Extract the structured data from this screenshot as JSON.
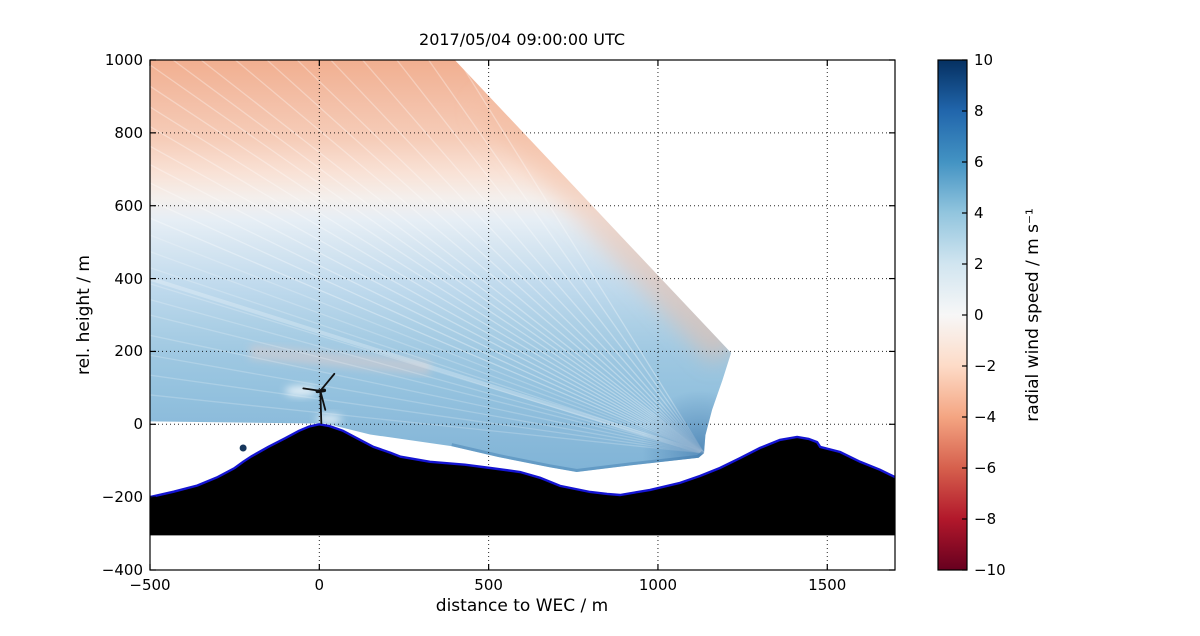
{
  "title": "2017/05/04 09:00:00 UTC",
  "axes": {
    "xlabel": "distance to WEC / m",
    "ylabel": "rel. height / m",
    "xlim": [
      -500,
      1700
    ],
    "ylim": [
      -400,
      1000
    ],
    "xticks": [
      {
        "v": -500,
        "label": "−500"
      },
      {
        "v": 0,
        "label": "0"
      },
      {
        "v": 500,
        "label": "500"
      },
      {
        "v": 1000,
        "label": "1000"
      },
      {
        "v": 1500,
        "label": "1500"
      }
    ],
    "yticks": [
      {
        "v": -400,
        "label": "−400"
      },
      {
        "v": -200,
        "label": "−200"
      },
      {
        "v": 0,
        "label": "0"
      },
      {
        "v": 200,
        "label": "200"
      },
      {
        "v": 400,
        "label": "400"
      },
      {
        "v": 600,
        "label": "600"
      },
      {
        "v": 800,
        "label": "800"
      },
      {
        "v": 1000,
        "label": "1000"
      }
    ],
    "grid": "dotted"
  },
  "colorbar": {
    "label": "radial wind speed / m s⁻¹",
    "vmin": -10,
    "vmax": 10,
    "cmap": "RdBu",
    "ticks": [
      {
        "v": 10,
        "label": "10"
      },
      {
        "v": 8,
        "label": "8"
      },
      {
        "v": 6,
        "label": "6"
      },
      {
        "v": 4,
        "label": "4"
      },
      {
        "v": 2,
        "label": "2"
      },
      {
        "v": 0,
        "label": "0"
      },
      {
        "v": -2,
        "label": "−2"
      },
      {
        "v": -4,
        "label": "−4"
      },
      {
        "v": -6,
        "label": "−6"
      },
      {
        "v": -8,
        "label": "−8"
      },
      {
        "v": -10,
        "label": "−10"
      }
    ],
    "stops": [
      {
        "v": 10,
        "c": "#053061"
      },
      {
        "v": 8,
        "c": "#2166ac"
      },
      {
        "v": 6,
        "c": "#4393c3"
      },
      {
        "v": 4,
        "c": "#92c5de"
      },
      {
        "v": 2,
        "c": "#d1e5f0"
      },
      {
        "v": 0,
        "c": "#f7f7f7"
      },
      {
        "v": -2,
        "c": "#fddbc7"
      },
      {
        "v": -4,
        "c": "#f4a582"
      },
      {
        "v": -6,
        "c": "#d6604d"
      },
      {
        "v": -8,
        "c": "#b2182b"
      },
      {
        "v": -10,
        "c": "#67001f"
      }
    ]
  },
  "chart_data": {
    "type": "heatmap",
    "title": "2017/05/04 09:00:00 UTC",
    "xlabel": "distance to WEC / m",
    "ylabel": "rel. height / m",
    "value_label": "radial wind speed / m s⁻¹",
    "scan": {
      "description": "Doppler-lidar RHI fan of radial wind speed; beams converge at the lidar located on the far valley slope. Negative (toward lidar, salmon) aloft, positive (blue) below ~650 m.",
      "lidar_origin_m": [
        1136,
        -79
      ],
      "field_profile": [
        {
          "height_m": 1000,
          "value_ms": -2.5
        },
        {
          "height_m": 900,
          "value_ms": -2.0
        },
        {
          "height_m": 800,
          "value_ms": -1.5
        },
        {
          "height_m": 700,
          "value_ms": -0.5
        },
        {
          "height_m": 600,
          "value_ms": 0.5
        },
        {
          "height_m": 500,
          "value_ms": 1.5
        },
        {
          "height_m": 400,
          "value_ms": 2.2
        },
        {
          "height_m": 300,
          "value_ms": 2.8
        },
        {
          "height_m": 200,
          "value_ms": 3.0
        },
        {
          "height_m": 100,
          "value_ms": 3.2
        },
        {
          "height_m": 0,
          "value_ms": 3.5
        },
        {
          "height_m": -100,
          "value_ms": 4.5
        }
      ],
      "near_lidar_value_ms": 6,
      "boundary_m": [
        [
          -500,
          1000
        ],
        [
          400,
          1000
        ],
        [
          1216,
          196
        ],
        [
          1190,
          120
        ],
        [
          1160,
          40
        ],
        [
          1140,
          -30
        ],
        [
          1136,
          -79
        ],
        [
          1120,
          -92
        ],
        [
          925,
          -112
        ],
        [
          760,
          -131
        ],
        [
          680,
          -118
        ],
        [
          530,
          -90
        ],
        [
          390,
          -60
        ],
        [
          150,
          -28
        ],
        [
          20,
          2
        ],
        [
          -500,
          8
        ]
      ],
      "gradient": [
        {
          "y": 1000,
          "c": "#f1af90"
        },
        {
          "y": 900,
          "c": "#f3bda4"
        },
        {
          "y": 780,
          "c": "#f6cdb9"
        },
        {
          "y": 690,
          "c": "#f9e2d6"
        },
        {
          "y": 620,
          "c": "#f4efec"
        },
        {
          "y": 560,
          "c": "#e6eef5"
        },
        {
          "y": 480,
          "c": "#d5e5f1"
        },
        {
          "y": 380,
          "c": "#c0daed"
        },
        {
          "y": 280,
          "c": "#add0e6"
        },
        {
          "y": 180,
          "c": "#9dc7e1"
        },
        {
          "y": 80,
          "c": "#93c1de"
        },
        {
          "y": -20,
          "c": "#8abada"
        },
        {
          "y": -140,
          "c": "#7fb3d6"
        }
      ],
      "streak_angles_deg": [
        6,
        8,
        10,
        12,
        14,
        15.5,
        17,
        18.5,
        20,
        21.5,
        23,
        24.5,
        26,
        27.5,
        29,
        30.5,
        32,
        33.5,
        35,
        36.5,
        38,
        40,
        42,
        44,
        46.5,
        49,
        52,
        55,
        58
      ]
    },
    "terrain_profile_m": [
      [
        -500,
        -200
      ],
      [
        -430,
        -185
      ],
      [
        -360,
        -168
      ],
      [
        -300,
        -145
      ],
      [
        -250,
        -120
      ],
      [
        -225,
        -103
      ],
      [
        -200,
        -88
      ],
      [
        -151,
        -62
      ],
      [
        -100,
        -38
      ],
      [
        -60,
        -18
      ],
      [
        -30,
        -6
      ],
      [
        0,
        0
      ],
      [
        30,
        -5
      ],
      [
        70,
        -18
      ],
      [
        110,
        -38
      ],
      [
        160,
        -62
      ],
      [
        210,
        -78
      ],
      [
        240,
        -89
      ],
      [
        327,
        -103
      ],
      [
        430,
        -111
      ],
      [
        505,
        -120
      ],
      [
        593,
        -131
      ],
      [
        652,
        -147
      ],
      [
        711,
        -169
      ],
      [
        800,
        -186
      ],
      [
        850,
        -191
      ],
      [
        888,
        -194
      ],
      [
        977,
        -180
      ],
      [
        1065,
        -161
      ],
      [
        1124,
        -142
      ],
      [
        1183,
        -120
      ],
      [
        1242,
        -93
      ],
      [
        1301,
        -65
      ],
      [
        1360,
        -43
      ],
      [
        1411,
        -35
      ],
      [
        1445,
        -40
      ],
      [
        1470,
        -49
      ],
      [
        1479,
        -62
      ],
      [
        1538,
        -76
      ],
      [
        1597,
        -103
      ],
      [
        1656,
        -125
      ],
      [
        1700,
        -145
      ]
    ],
    "terrain_fill_bottom_m": -305,
    "terrain_outline_color": "#1414d2",
    "turbine": {
      "x_m": 0,
      "base_height_m": 0,
      "hub_height_m": 78,
      "blade_tip_height_m": 120
    },
    "marker_point_m": {
      "x": -225,
      "y": -65,
      "color": "#16365c"
    }
  }
}
